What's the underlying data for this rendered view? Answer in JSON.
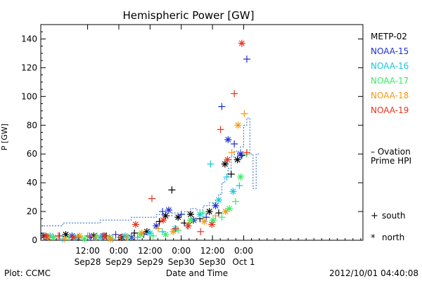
{
  "chart_data": {
    "type": "scatter",
    "title": "Hemispheric Power [GW]",
    "ylabel": "P [GW]",
    "xlabel": "Date and Time",
    "ylim": [
      0,
      150
    ],
    "xlim": [
      0,
      5.16
    ],
    "y_ticks": [
      0,
      20,
      40,
      60,
      80,
      100,
      120,
      140
    ],
    "x_ticks": [
      {
        "x": 0.75,
        "line1": "12:00",
        "line2": "Sep28"
      },
      {
        "x": 1.25,
        "line1": "0:00",
        "line2": "Sep29"
      },
      {
        "x": 1.75,
        "line1": "12:00",
        "line2": "Sep29"
      },
      {
        "x": 2.25,
        "line1": "0:00",
        "line2": "Sep30"
      },
      {
        "x": 2.75,
        "line1": "12:00",
        "line2": "Sep30"
      },
      {
        "x": 3.25,
        "line1": "0:00",
        "line2": "Oct 1"
      }
    ],
    "legend": [
      {
        "name": "METP-02",
        "color": "#000000"
      },
      {
        "name": "NOAA-15",
        "color": "#1e2fd2"
      },
      {
        "name": "NOAA-16",
        "color": "#19c6dc"
      },
      {
        "name": "NOAA-17",
        "color": "#33ee66"
      },
      {
        "name": "NOAA-18",
        "color": "#f39a12"
      },
      {
        "name": "NOAA-19",
        "color": "#e8321c"
      }
    ],
    "ovation": {
      "label_line1": "– Ovation",
      "label_line2": "Prime HPI",
      "color": "#2466c8",
      "x": [
        0.0,
        0.35,
        0.35,
        0.95,
        0.95,
        1.45,
        1.45,
        1.85,
        1.85,
        2.0,
        2.0,
        2.1,
        2.1,
        2.2,
        2.2,
        2.3,
        2.3,
        2.4,
        2.4,
        2.5,
        2.5,
        2.6,
        2.6,
        2.7,
        2.7,
        2.8,
        2.8,
        2.85,
        2.85,
        2.9,
        2.9,
        2.95,
        2.95,
        3.0,
        3.0,
        3.05,
        3.05,
        3.1,
        3.1,
        3.15,
        3.15,
        3.2,
        3.2,
        3.25,
        3.25,
        3.3,
        3.3,
        3.35,
        3.35,
        3.4,
        3.4,
        3.45,
        3.45,
        3.5
      ],
      "y": [
        10,
        10,
        12,
        12,
        14,
        14,
        16,
        16,
        18,
        18,
        17,
        17,
        19,
        19,
        18,
        18,
        20,
        20,
        22,
        22,
        21,
        21,
        24,
        24,
        26,
        26,
        28,
        28,
        32,
        32,
        40,
        40,
        44,
        44,
        50,
        50,
        58,
        58,
        62,
        62,
        56,
        56,
        65,
        65,
        80,
        80,
        85,
        85,
        60,
        60,
        36,
        36,
        60,
        60
      ]
    },
    "series": [
      {
        "name": "METP-02",
        "color": "#000000",
        "x": [
          0.05,
          0.2,
          0.4,
          0.6,
          0.85,
          1.05,
          1.3,
          1.5,
          1.7,
          1.9,
          2.0,
          2.1,
          2.2,
          2.3,
          2.4,
          2.55,
          2.7,
          2.85,
          2.95,
          3.05,
          3.15,
          3.22
        ],
        "y": [
          3,
          2,
          4,
          2,
          3,
          3,
          2,
          5,
          6,
          13,
          17,
          35,
          16,
          12,
          18,
          15,
          20,
          19,
          53,
          46,
          56,
          59
        ]
      },
      {
        "name": "NOAA-15",
        "color": "#1e2fd2",
        "x": [
          0.1,
          0.3,
          0.5,
          0.8,
          1.0,
          1.2,
          1.45,
          1.65,
          1.85,
          1.95,
          2.05,
          2.25,
          2.45,
          2.65,
          2.8,
          2.9,
          3.0,
          3.1,
          3.2,
          3.3
        ],
        "y": [
          2,
          3,
          3,
          2,
          3,
          4,
          2,
          4,
          10,
          20,
          21,
          18,
          14,
          16,
          24,
          93,
          70,
          67,
          60,
          126
        ]
      },
      {
        "name": "NOAA-16",
        "color": "#19c6dc",
        "x": [
          0.15,
          0.35,
          0.55,
          0.75,
          0.95,
          1.15,
          1.35,
          1.55,
          1.75,
          1.95,
          2.15,
          2.35,
          2.55,
          2.72,
          2.85,
          2.98,
          3.08,
          3.18
        ],
        "y": [
          3,
          1,
          2,
          3,
          2,
          1,
          3,
          2,
          5,
          6,
          8,
          10,
          18,
          53,
          28,
          44,
          34,
          38
        ]
      },
      {
        "name": "NOAA-17",
        "color": "#33ee66",
        "x": [
          0.2,
          0.45,
          0.7,
          0.9,
          1.1,
          1.4,
          1.6,
          1.8,
          2.0,
          2.2,
          2.4,
          2.6,
          2.76,
          2.9,
          3.02,
          3.12,
          3.2,
          3.3
        ],
        "y": [
          2,
          2,
          1,
          3,
          2,
          2,
          4,
          3,
          4,
          7,
          14,
          19,
          14,
          16,
          22,
          27,
          44,
          60
        ]
      },
      {
        "name": "NOAA-18",
        "color": "#f39a12",
        "x": [
          0.12,
          0.38,
          0.62,
          0.88,
          1.12,
          1.38,
          1.62,
          1.88,
          2.12,
          2.38,
          2.62,
          2.8,
          2.96,
          3.06,
          3.16,
          3.26
        ],
        "y": [
          2,
          1,
          3,
          2,
          1,
          2,
          5,
          8,
          6,
          12,
          13,
          17,
          20,
          61,
          80,
          88
        ]
      },
      {
        "name": "NOAA-19",
        "color": "#e8321c",
        "x": [
          0.08,
          0.28,
          0.52,
          0.78,
          1.02,
          1.28,
          1.52,
          1.78,
          1.96,
          2.16,
          2.36,
          2.56,
          2.74,
          2.88,
          2.99,
          3.1,
          3.22,
          3.3
        ],
        "y": [
          3,
          3,
          2,
          3,
          3,
          2,
          11,
          29,
          14,
          8,
          10,
          6,
          11,
          77,
          56,
          102,
          137,
          61
        ]
      }
    ],
    "markers": {
      "south_symbol": "+",
      "south_label": "south",
      "north_symbol": "*",
      "north_label": "north"
    }
  },
  "footer": {
    "plot_credit": "Plot: CCMC",
    "timestamp": "2012/10/01  04:40:08"
  }
}
